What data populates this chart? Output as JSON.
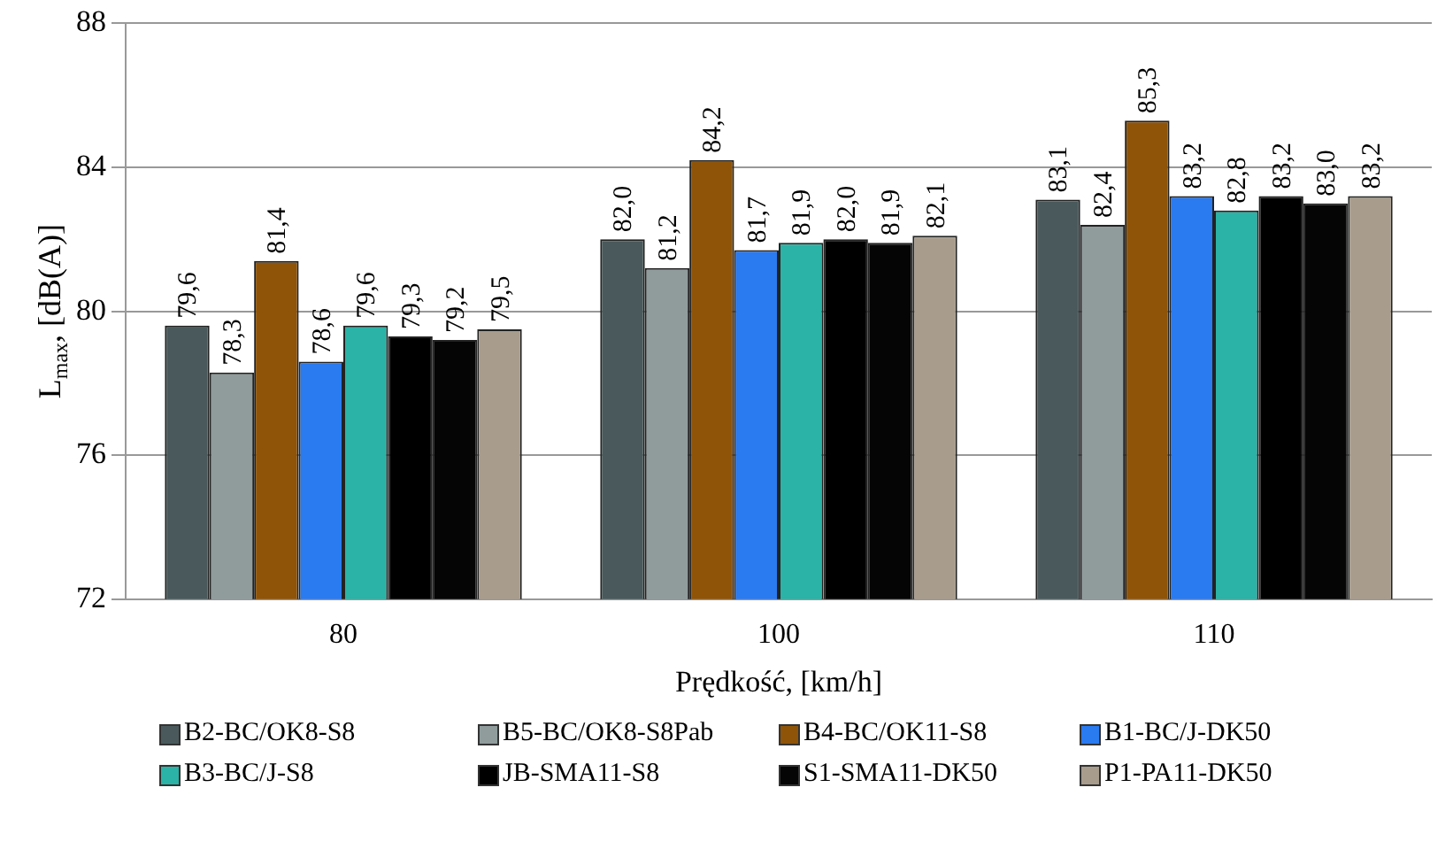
{
  "chart_data": {
    "type": "bar",
    "xlabel": "Prędkość, [km/h]",
    "ylabel": "L$_{max}$, [dB(A)]",
    "categories": [
      "80",
      "100",
      "110"
    ],
    "ylim": [
      72,
      88
    ],
    "yticks": [
      72,
      76,
      80,
      84,
      88
    ],
    "grid": "y",
    "legend": "bottom",
    "series": [
      {
        "name": "B2-BC/OK8-S8",
        "color": "#4a5a5c",
        "values": [
          79.6,
          82.0,
          83.1
        ],
        "value_labels": [
          "79,6",
          "82,0",
          "83,1"
        ]
      },
      {
        "name": "B5-BC/OK8-S8Pab",
        "color": "#909c9c",
        "values": [
          78.3,
          81.2,
          82.4
        ],
        "value_labels": [
          "78,3",
          "81,2",
          "82,4"
        ]
      },
      {
        "name": "B4-BC/OK11-S8",
        "color": "#8f5408",
        "values": [
          81.4,
          84.2,
          85.3
        ],
        "value_labels": [
          "81,4",
          "84,2",
          "85,3"
        ]
      },
      {
        "name": "B1-BC/J-DK50",
        "color": "#2a7af0",
        "values": [
          78.6,
          81.7,
          83.2
        ],
        "value_labels": [
          "78,6",
          "81,7",
          "83,2"
        ]
      },
      {
        "name": "B3-BC/J-S8",
        "color": "#2ab3a6",
        "values": [
          79.6,
          81.9,
          82.8
        ],
        "value_labels": [
          "79,6",
          "81,9",
          "82,8"
        ]
      },
      {
        "name": "JB-SMA11-S8",
        "color": "#000000",
        "values": [
          79.3,
          82.0,
          83.2
        ],
        "value_labels": [
          "79,3",
          "82,0",
          "83,2"
        ]
      },
      {
        "name": "S1-SMA11-DK50",
        "color": "#050505",
        "values": [
          79.2,
          81.9,
          83.0
        ],
        "value_labels": [
          "79,2",
          "81,9",
          "83,0"
        ]
      },
      {
        "name": "P1-PA11-DK50",
        "color": "#a89c8c",
        "values": [
          79.5,
          82.1,
          83.2
        ],
        "value_labels": [
          "79,5",
          "82,1",
          "83,2"
        ]
      }
    ]
  }
}
